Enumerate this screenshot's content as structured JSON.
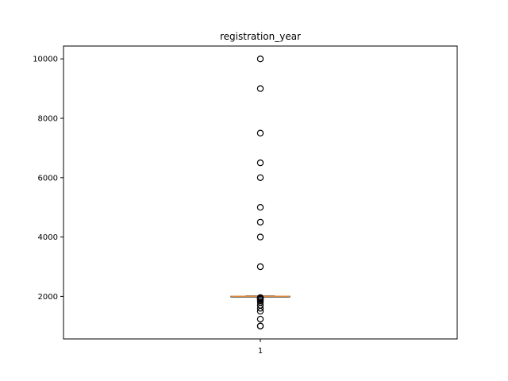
{
  "chart_data": {
    "type": "box",
    "title": "registration_year",
    "xlabel": "",
    "ylabel": "",
    "categories": [
      "1"
    ],
    "ylim": [
      567,
      10433
    ],
    "yticks": [
      2000,
      4000,
      6000,
      8000,
      10000
    ],
    "grid": false,
    "boxes": [
      {
        "category": "1",
        "q1": 1999,
        "median": 2003,
        "q3": 2008,
        "whisker_low": 1985,
        "whisker_high": 2018,
        "fliers": [
          1000,
          1001,
          1234,
          1500,
          1600,
          1700,
          1800,
          1850,
          1900,
          1910,
          1920,
          1930,
          1950,
          1960,
          3000,
          4000,
          4500,
          5000,
          6000,
          6500,
          7500,
          9000,
          10000
        ]
      }
    ],
    "colors": {
      "box": "#000000",
      "median": "#e08b3a",
      "flier_edge": "#000000",
      "axes": "#000000"
    }
  }
}
